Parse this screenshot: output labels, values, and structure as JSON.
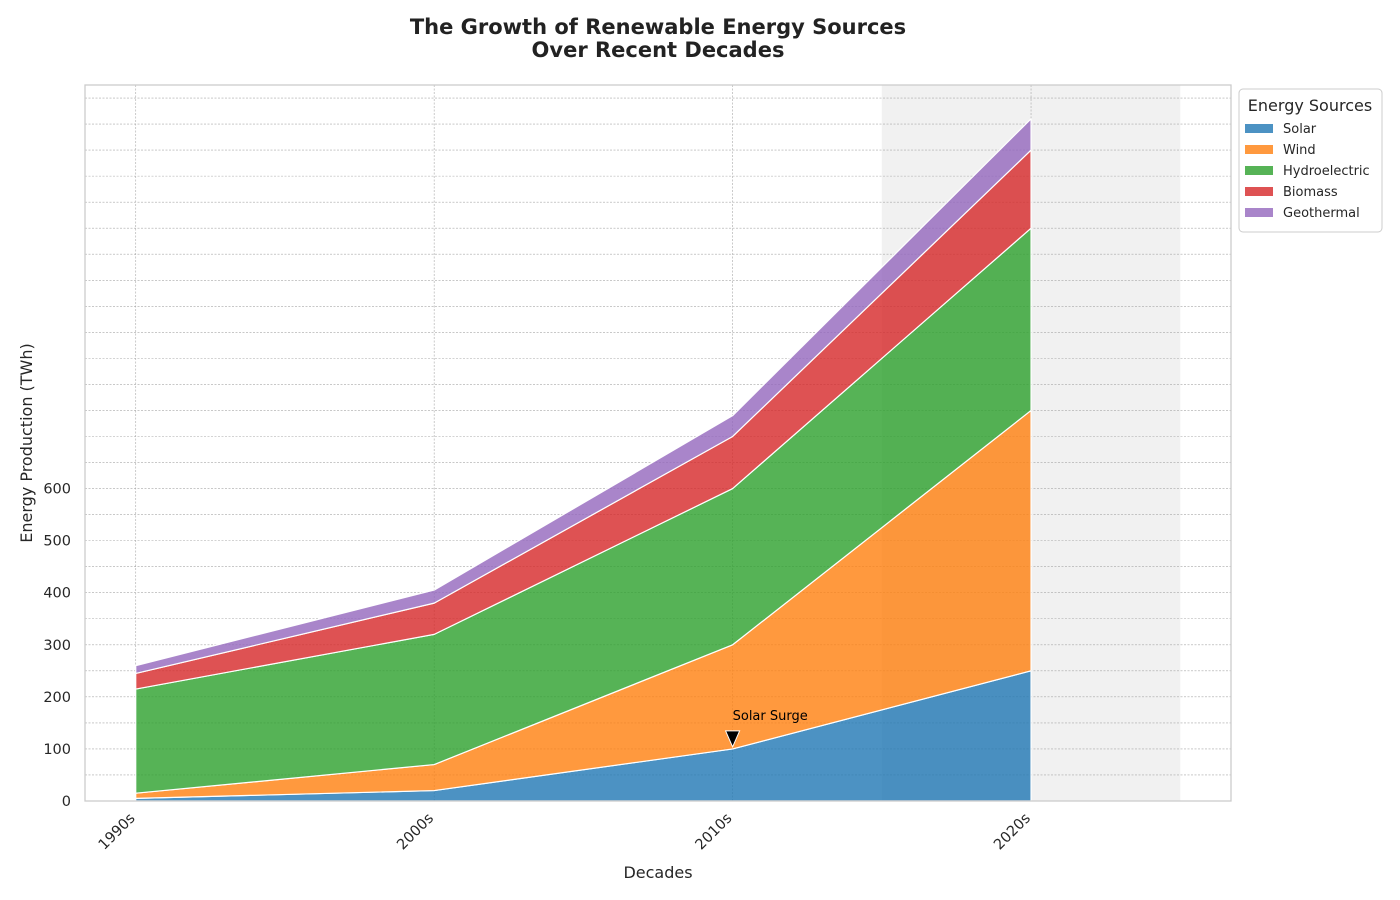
{
  "chart_data": {
    "type": "area",
    "stacked": true,
    "title_lines": [
      "The Growth of Renewable Energy Sources",
      "Over Recent Decades"
    ],
    "xlabel": "Decades",
    "ylabel": "Energy Production (TWh)",
    "categories": [
      "1990s",
      "2000s",
      "2010s",
      "2020s"
    ],
    "x_range": [
      -0.17,
      3.67
    ],
    "ylim": [
      0,
      1375
    ],
    "y_tick_values": [
      0,
      100,
      200,
      300,
      400,
      500,
      600
    ],
    "y_tick_labels": [
      "0",
      "100",
      "200",
      "300",
      "400",
      "500",
      "600"
    ],
    "y_minor_step": 50,
    "grid": true,
    "highlight_x_range": [
      2.5,
      3.5
    ],
    "series": [
      {
        "name": "Solar",
        "color": "#1f77b4",
        "values": [
          5,
          20,
          100,
          250
        ]
      },
      {
        "name": "Wind",
        "color": "#ff7f0e",
        "values": [
          10,
          50,
          200,
          500
        ]
      },
      {
        "name": "Hydroelectric",
        "color": "#2ca02c",
        "values": [
          200,
          250,
          300,
          350
        ]
      },
      {
        "name": "Biomass",
        "color": "#d62728",
        "values": [
          30,
          60,
          100,
          150
        ]
      },
      {
        "name": "Geothermal",
        "color": "#9467bd",
        "values": [
          15,
          25,
          40,
          60
        ]
      }
    ],
    "legend": {
      "title": "Energy Sources",
      "placement": "outside-top-right"
    },
    "annotations": [
      {
        "text": "Solar Surge",
        "x": 2,
        "y": 100,
        "text_x": 2,
        "text_y": 150,
        "arrow": true
      }
    ]
  }
}
